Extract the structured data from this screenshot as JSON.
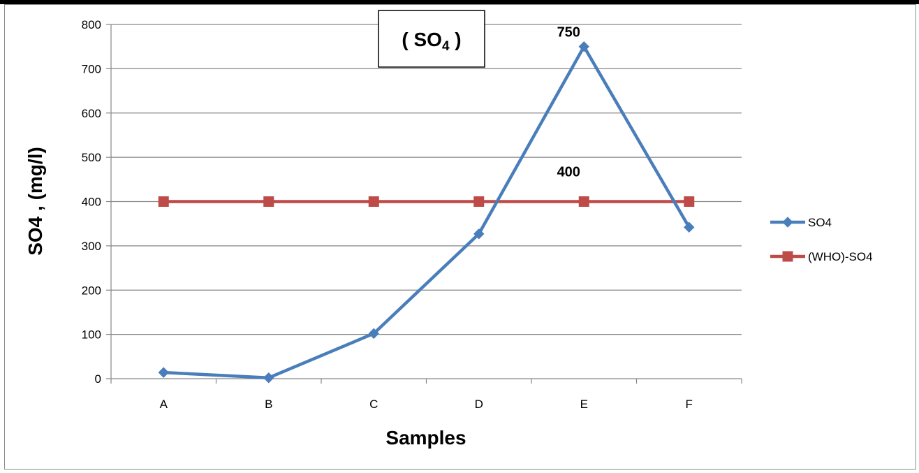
{
  "chart_data": {
    "type": "line",
    "title": "( SO",
    "title_sub": "4",
    "title_tail": " )",
    "xlabel": "Samples",
    "ylabel": "SO4 , (mg/l)",
    "categories": [
      "A",
      "B",
      "C",
      "D",
      "E",
      "F"
    ],
    "ylim": [
      0,
      800
    ],
    "yticks": [
      0,
      100,
      200,
      300,
      400,
      500,
      600,
      700,
      800
    ],
    "grid": true,
    "legend_position": "right",
    "series": [
      {
        "name": "SO4",
        "values": [
          14,
          2,
          102,
          327,
          750,
          342
        ],
        "color": "#4a7ebb",
        "marker": "diamond"
      },
      {
        "name": "(WHO)-SO4",
        "values": [
          400,
          400,
          400,
          400,
          400,
          400
        ],
        "color": "#be4b48",
        "marker": "square"
      }
    ],
    "annotations": [
      {
        "text": "750",
        "series": 0,
        "index": 4
      },
      {
        "text": "400",
        "series": 1,
        "index": 4
      }
    ]
  }
}
